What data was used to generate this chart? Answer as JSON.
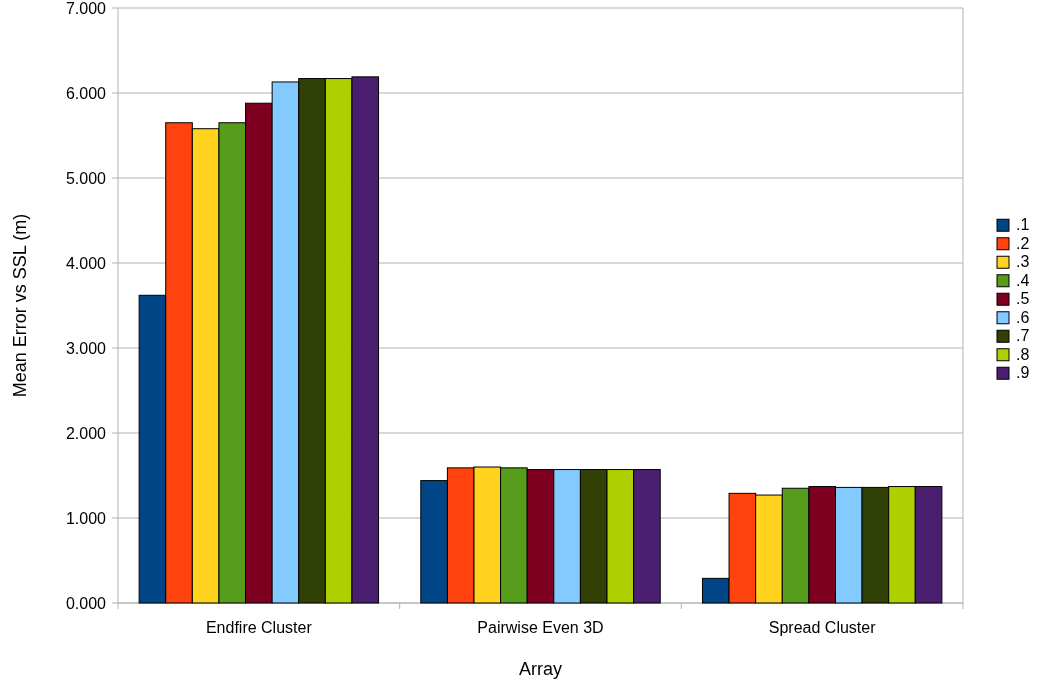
{
  "chart_data": {
    "type": "bar",
    "xlabel": "Array",
    "ylabel": "Mean Error vs SSL (m)",
    "categories": [
      "Endfire Cluster",
      "Pairwise Even 3D",
      "Spread Cluster"
    ],
    "series": [
      {
        "name": ".1",
        "color": "#004586",
        "values": [
          3.62,
          1.44,
          0.29
        ]
      },
      {
        "name": ".2",
        "color": "#ff420e",
        "values": [
          5.65,
          1.59,
          1.29
        ]
      },
      {
        "name": ".3",
        "color": "#ffd320",
        "values": [
          5.58,
          1.6,
          1.27
        ]
      },
      {
        "name": ".4",
        "color": "#579d1c",
        "values": [
          5.65,
          1.59,
          1.35
        ]
      },
      {
        "name": ".5",
        "color": "#7e0021",
        "values": [
          5.88,
          1.57,
          1.37
        ]
      },
      {
        "name": ".6",
        "color": "#83caff",
        "values": [
          6.13,
          1.57,
          1.36
        ]
      },
      {
        "name": ".7",
        "color": "#314004",
        "values": [
          6.17,
          1.57,
          1.36
        ]
      },
      {
        "name": ".8",
        "color": "#aecf00",
        "values": [
          6.17,
          1.57,
          1.37
        ]
      },
      {
        "name": ".9",
        "color": "#4b1f6f",
        "values": [
          6.19,
          1.57,
          1.37
        ]
      }
    ],
    "ylim": [
      0,
      7
    ],
    "yticks": [
      {
        "value": 0,
        "label": "0.000"
      },
      {
        "value": 1,
        "label": "1.000"
      },
      {
        "value": 2,
        "label": "2.000"
      },
      {
        "value": 3,
        "label": "3.000"
      },
      {
        "value": 4,
        "label": "4.000"
      },
      {
        "value": 5,
        "label": "5.000"
      },
      {
        "value": 6,
        "label": "6.000"
      },
      {
        "value": 7,
        "label": "7.000"
      }
    ],
    "grid": "y",
    "legend": "right"
  }
}
